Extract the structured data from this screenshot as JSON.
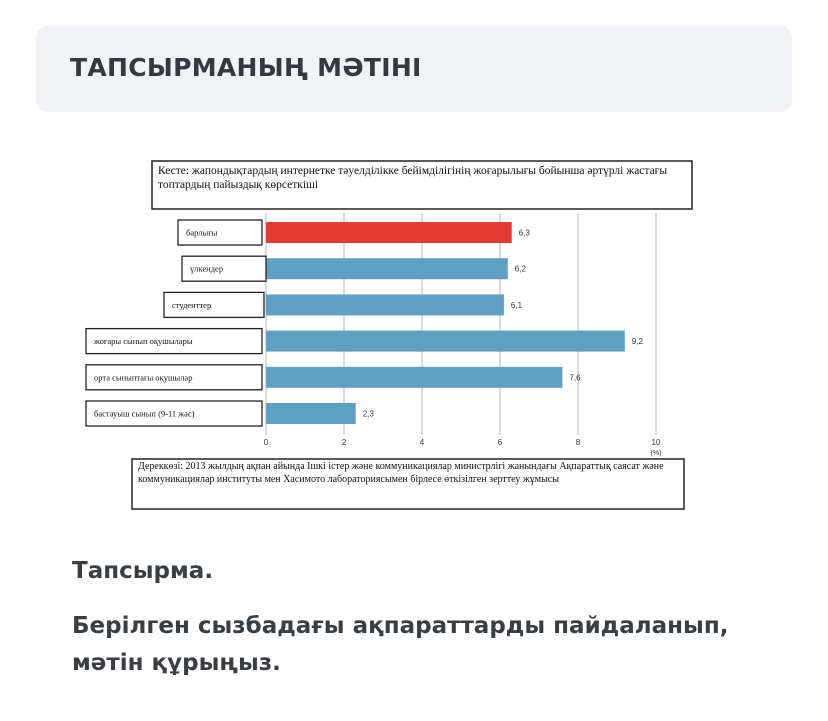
{
  "header": {
    "title": "ТАПСЫРМАНЫҢ МӘТІНІ"
  },
  "chart_data": {
    "type": "bar",
    "orientation": "horizontal",
    "title": "Кесте: жапондықтардың интернетке тәуелділікке бейімділігінің жоғарылығы бойынша әртүрлі жастағы топтардың пайыздық көрсеткіші",
    "categories": [
      "барлығы",
      "үлкендер",
      "студенттер",
      "жоғары сынып оқушылары",
      "орта сыныптағы оқушылар",
      "бастауыш сынып (9-11 жас)"
    ],
    "values": [
      6.3,
      6.2,
      6.1,
      9.2,
      7.6,
      2.3
    ],
    "value_labels": [
      "6,3",
      "6,2",
      "6,1",
      "9,2",
      "7,6",
      "2,3"
    ],
    "colors": [
      "#e53935",
      "#5f9fc2",
      "#5f9fc2",
      "#5f9fc2",
      "#5f9fc2",
      "#5f9fc2"
    ],
    "xlim": [
      0,
      10
    ],
    "xticks": [
      "0",
      "2",
      "4",
      "6",
      "8",
      "10"
    ],
    "xunit": "(%)",
    "grid": true,
    "source": "Дереккөзі: 2013 жылдың ақпан айында Ішкі істер және коммуникациялар министрлігі жанындағы Ақпараттық саясат және коммуникациялар институты мен Хасимото лабораториясымен бірлесе өткізілген зерттеу жұмысы"
  },
  "task": {
    "heading": "Тапсырма.",
    "text": "Берілген сызбадағы ақпараттарды пайдаланып, мәтін құрыңыз."
  }
}
